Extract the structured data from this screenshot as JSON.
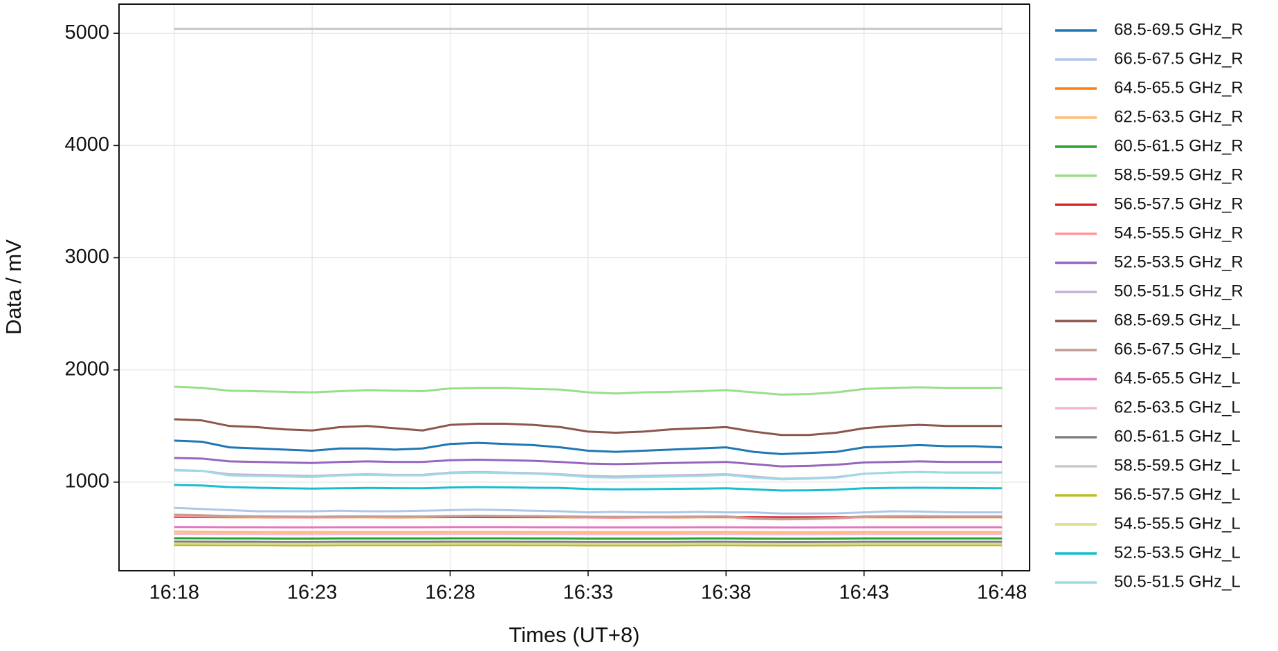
{
  "chart_data": {
    "type": "line",
    "x_label": "Times (UT+8)",
    "y_label": "Data / mV",
    "x": [
      "16:18",
      "16:19",
      "16:20",
      "16:21",
      "16:22",
      "16:23",
      "16:24",
      "16:25",
      "16:26",
      "16:27",
      "16:28",
      "16:29",
      "16:30",
      "16:31",
      "16:32",
      "16:33",
      "16:34",
      "16:35",
      "16:36",
      "16:37",
      "16:38",
      "16:39",
      "16:40",
      "16:41",
      "16:42",
      "16:43",
      "16:44",
      "16:45",
      "16:46",
      "16:47",
      "16:48"
    ],
    "xlim": [
      "16:16",
      "16:49"
    ],
    "xticks": [
      "16:18",
      "16:23",
      "16:28",
      "16:33",
      "16:38",
      "16:43",
      "16:48"
    ],
    "ylim": [
      210,
      5260
    ],
    "yticks": [
      1000,
      2000,
      3000,
      4000,
      5000
    ],
    "grid": true,
    "legend": "outside-right",
    "series": [
      {
        "name": "68.5-69.5 GHz_R",
        "color": "#1f77b4",
        "values": [
          1370,
          1360,
          1310,
          1300,
          1290,
          1280,
          1300,
          1300,
          1290,
          1300,
          1340,
          1350,
          1340,
          1330,
          1310,
          1280,
          1270,
          1280,
          1290,
          1300,
          1310,
          1270,
          1250,
          1260,
          1270,
          1310,
          1320,
          1330,
          1320,
          1320,
          1310
        ]
      },
      {
        "name": "66.5-67.5 GHz_R",
        "color": "#aec7e8",
        "values": [
          770,
          760,
          750,
          740,
          740,
          740,
          745,
          740,
          740,
          745,
          750,
          755,
          750,
          745,
          740,
          730,
          735,
          730,
          730,
          735,
          730,
          730,
          720,
          720,
          722,
          730,
          740,
          738,
          732,
          730,
          730
        ]
      },
      {
        "name": "64.5-65.5 GHz_R",
        "color": "#ff7f0e",
        "values": [
          690,
          688,
          686,
          686,
          685,
          685,
          686,
          686,
          685,
          686,
          688,
          688,
          687,
          687,
          686,
          685,
          685,
          685,
          685,
          686,
          686,
          684,
          683,
          683,
          684,
          686,
          686,
          686,
          686,
          686,
          686
        ]
      },
      {
        "name": "62.5-63.5 GHz_R",
        "color": "#ffbb78",
        "values": [
          560,
          558,
          557,
          556,
          556,
          556,
          556,
          556,
          556,
          556,
          557,
          557,
          557,
          556,
          556,
          555,
          555,
          555,
          555,
          556,
          556,
          555,
          554,
          554,
          555,
          556,
          556,
          556,
          556,
          556,
          556
        ]
      },
      {
        "name": "60.5-61.5 GHz_R",
        "color": "#2ca02c",
        "values": [
          500,
          499,
          498,
          498,
          497,
          497,
          498,
          498,
          498,
          498,
          499,
          499,
          499,
          498,
          498,
          497,
          497,
          497,
          497,
          498,
          498,
          497,
          496,
          496,
          497,
          498,
          498,
          498,
          498,
          498,
          498
        ]
      },
      {
        "name": "58.5-59.5 GHz_R",
        "color": "#98df8a",
        "values": [
          1850,
          1840,
          1815,
          1810,
          1805,
          1800,
          1810,
          1820,
          1815,
          1810,
          1835,
          1840,
          1840,
          1830,
          1825,
          1800,
          1790,
          1800,
          1805,
          1810,
          1820,
          1800,
          1780,
          1785,
          1800,
          1830,
          1840,
          1845,
          1840,
          1840,
          1840
        ]
      },
      {
        "name": "56.5-57.5 GHz_R",
        "color": "#d62728",
        "values": [
          690,
          689,
          688,
          688,
          687,
          687,
          688,
          688,
          688,
          688,
          689,
          689,
          689,
          688,
          688,
          687,
          687,
          687,
          687,
          688,
          688,
          687,
          686,
          686,
          687,
          688,
          688,
          688,
          688,
          688,
          688
        ]
      },
      {
        "name": "54.5-55.5 GHz_R",
        "color": "#ff9896",
        "values": [
          700,
          695,
          690,
          688,
          685,
          684,
          686,
          688,
          686,
          688,
          695,
          698,
          696,
          694,
          690,
          684,
          682,
          684,
          686,
          688,
          690,
          672,
          668,
          670,
          676,
          688,
          690,
          692,
          690,
          690,
          690
        ]
      },
      {
        "name": "52.5-53.5 GHz_R",
        "color": "#9467bd",
        "values": [
          1215,
          1210,
          1185,
          1180,
          1175,
          1170,
          1180,
          1185,
          1180,
          1180,
          1195,
          1200,
          1195,
          1190,
          1180,
          1165,
          1160,
          1165,
          1170,
          1175,
          1180,
          1160,
          1140,
          1145,
          1155,
          1175,
          1180,
          1185,
          1180,
          1180,
          1180
        ]
      },
      {
        "name": "50.5-51.5 GHz_R",
        "color": "#c5b0d5",
        "values": [
          1105,
          1100,
          1070,
          1065,
          1060,
          1055,
          1065,
          1070,
          1065,
          1065,
          1085,
          1090,
          1085,
          1080,
          1070,
          1055,
          1050,
          1055,
          1060,
          1065,
          1070,
          1050,
          1030,
          1035,
          1045,
          1075,
          1085,
          1090,
          1085,
          1085,
          1085
        ]
      },
      {
        "name": "68.5-69.5 GHz_L",
        "color": "#8c564b",
        "values": [
          1560,
          1550,
          1500,
          1490,
          1470,
          1460,
          1490,
          1500,
          1480,
          1460,
          1510,
          1520,
          1520,
          1510,
          1490,
          1450,
          1440,
          1450,
          1470,
          1480,
          1490,
          1450,
          1420,
          1420,
          1440,
          1480,
          1500,
          1510,
          1500,
          1500,
          1500
        ]
      },
      {
        "name": "66.5-67.5 GHz_L",
        "color": "#c49c94",
        "values": [
          710,
          705,
          698,
          695,
          693,
          692,
          694,
          695,
          694,
          694,
          698,
          700,
          699,
          697,
          695,
          692,
          690,
          691,
          692,
          693,
          695,
          678,
          672,
          674,
          682,
          694,
          696,
          697,
          695,
          695,
          695
        ]
      },
      {
        "name": "64.5-65.5 GHz_L",
        "color": "#e377c2",
        "values": [
          600,
          599,
          598,
          598,
          597,
          597,
          598,
          598,
          598,
          598,
          599,
          599,
          599,
          598,
          598,
          597,
          597,
          597,
          597,
          598,
          598,
          597,
          596,
          596,
          597,
          598,
          598,
          598,
          598,
          598,
          598
        ]
      },
      {
        "name": "62.5-63.5 GHz_L",
        "color": "#f7b6d2",
        "values": [
          540,
          539,
          538,
          538,
          537,
          537,
          538,
          538,
          538,
          538,
          539,
          539,
          539,
          538,
          538,
          537,
          537,
          537,
          537,
          538,
          538,
          537,
          536,
          536,
          537,
          538,
          538,
          538,
          538,
          538,
          538
        ]
      },
      {
        "name": "60.5-61.5 GHz_L",
        "color": "#7f7f7f",
        "values": [
          470,
          469,
          468,
          468,
          467,
          467,
          468,
          468,
          468,
          468,
          469,
          469,
          469,
          468,
          468,
          467,
          467,
          467,
          467,
          468,
          468,
          467,
          466,
          466,
          467,
          468,
          468,
          468,
          468,
          468,
          468
        ]
      },
      {
        "name": "58.5-59.5 GHz_L",
        "color": "#c7c7c7",
        "values": [
          5040,
          5040,
          5040,
          5040,
          5040,
          5040,
          5040,
          5040,
          5040,
          5040,
          5040,
          5040,
          5040,
          5040,
          5040,
          5040,
          5040,
          5040,
          5040,
          5040,
          5040,
          5040,
          5040,
          5040,
          5040,
          5040,
          5040,
          5040,
          5040,
          5040,
          5040
        ]
      },
      {
        "name": "56.5-57.5 GHz_L",
        "color": "#bcbd22",
        "values": [
          440,
          439,
          438,
          438,
          437,
          437,
          438,
          438,
          438,
          438,
          439,
          439,
          439,
          438,
          438,
          437,
          437,
          437,
          437,
          438,
          438,
          437,
          436,
          436,
          437,
          438,
          438,
          438,
          438,
          438,
          438
        ]
      },
      {
        "name": "54.5-55.5 GHz_L",
        "color": "#dbdb8d",
        "values": [
          452,
          451,
          450,
          450,
          449,
          449,
          450,
          450,
          450,
          450,
          451,
          451,
          451,
          450,
          450,
          449,
          449,
          449,
          449,
          450,
          450,
          449,
          448,
          448,
          449,
          450,
          450,
          450,
          450,
          450,
          450
        ]
      },
      {
        "name": "52.5-53.5 GHz_L",
        "color": "#17becf",
        "values": [
          975,
          970,
          955,
          950,
          945,
          942,
          945,
          948,
          946,
          945,
          952,
          955,
          953,
          950,
          948,
          938,
          935,
          937,
          940,
          942,
          945,
          935,
          925,
          927,
          932,
          945,
          948,
          950,
          948,
          947,
          945
        ]
      },
      {
        "name": "50.5-51.5 GHz_L",
        "color": "#9edae5",
        "values": [
          1110,
          1100,
          1060,
          1055,
          1050,
          1045,
          1060,
          1065,
          1060,
          1060,
          1080,
          1085,
          1080,
          1075,
          1065,
          1045,
          1040,
          1045,
          1050,
          1055,
          1065,
          1040,
          1025,
          1030,
          1040,
          1075,
          1085,
          1090,
          1085,
          1085,
          1085
        ]
      }
    ]
  }
}
